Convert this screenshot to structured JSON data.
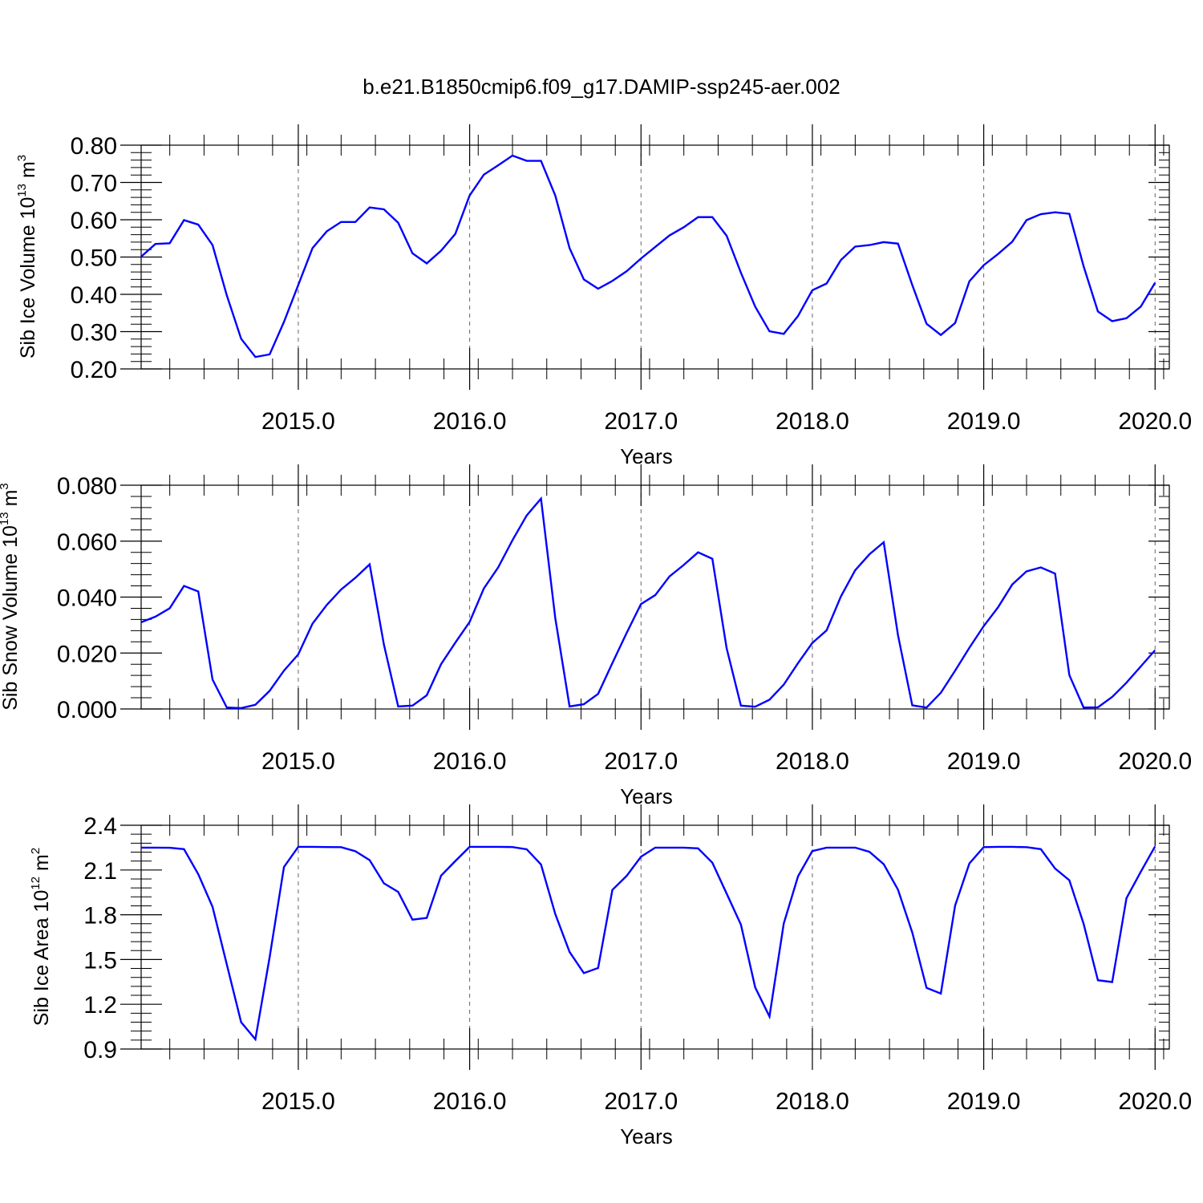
{
  "title": "b.e21.B1850cmip6.f09_g17.DAMIP-ssp245-aer.002",
  "colors": {
    "line": "#0000ff",
    "axis": "#000000",
    "grid": "#666666"
  },
  "chart_data": [
    {
      "type": "line",
      "ylabel": {
        "main": "Sib Ice Volume 10",
        "sup": "13",
        "unit": " m",
        "unit_sup": "3"
      },
      "xlabel": "Years",
      "xlim": [
        2014.083,
        2020.083
      ],
      "ylim": [
        0.2,
        0.8
      ],
      "y_ticks": [
        "0.20",
        "0.30",
        "0.40",
        "0.50",
        "0.60",
        "0.70",
        "0.80"
      ],
      "x_ticks": [
        "2015.0",
        "2016.0",
        "2017.0",
        "2018.0",
        "2019.0",
        "2020.0"
      ],
      "grid": "vertical-dashed-at-years",
      "x_start": 2014.083,
      "x_step": 0.0833333,
      "values": [
        0.501,
        0.535,
        0.537,
        0.599,
        0.587,
        0.532,
        0.397,
        0.281,
        0.232,
        0.239,
        0.326,
        0.425,
        0.524,
        0.569,
        0.594,
        0.594,
        0.633,
        0.628,
        0.592,
        0.51,
        0.483,
        0.517,
        0.562,
        0.665,
        0.721,
        0.746,
        0.772,
        0.758,
        0.758,
        0.665,
        0.524,
        0.44,
        0.415,
        0.436,
        0.462,
        0.496,
        0.527,
        0.558,
        0.58,
        0.607,
        0.607,
        0.557,
        0.458,
        0.367,
        0.301,
        0.294,
        0.342,
        0.411,
        0.429,
        0.492,
        0.528,
        0.532,
        0.54,
        0.536,
        0.425,
        0.321,
        0.291,
        0.323,
        0.435,
        0.478,
        0.508,
        0.541,
        0.599,
        0.615,
        0.62,
        0.616,
        0.475,
        0.354,
        0.328,
        0.336,
        0.367,
        0.431
      ]
    },
    {
      "type": "line",
      "ylabel": {
        "main": "Sib Snow Volume 10",
        "sup": "13",
        "unit": " m",
        "unit_sup": "3"
      },
      "xlabel": "Years",
      "xlim": [
        2014.083,
        2020.083
      ],
      "ylim": [
        0.0,
        0.08
      ],
      "y_ticks": [
        "0.000",
        "0.020",
        "0.040",
        "0.060",
        "0.080"
      ],
      "x_ticks": [
        "2015.0",
        "2016.0",
        "2017.0",
        "2018.0",
        "2019.0",
        "2020.0"
      ],
      "grid": "vertical-dashed-at-years",
      "x_start": 2014.083,
      "x_step": 0.0833333,
      "values": [
        0.031,
        0.033,
        0.036,
        0.044,
        0.042,
        0.0105,
        0.0005,
        0.0003,
        0.0015,
        0.0065,
        0.0137,
        0.0195,
        0.0305,
        0.0372,
        0.0427,
        0.0469,
        0.0517,
        0.023,
        0.0009,
        0.0012,
        0.0049,
        0.016,
        0.0237,
        0.0311,
        0.0431,
        0.0506,
        0.0603,
        0.0692,
        0.0752,
        0.0325,
        0.0009,
        0.0017,
        0.0054,
        0.0164,
        0.0272,
        0.0375,
        0.0407,
        0.0474,
        0.0515,
        0.056,
        0.0537,
        0.0217,
        0.0012,
        0.0008,
        0.0033,
        0.0087,
        0.0164,
        0.0236,
        0.0281,
        0.0402,
        0.0496,
        0.0553,
        0.0596,
        0.0264,
        0.0013,
        0.0005,
        0.0058,
        0.0137,
        0.0219,
        0.0296,
        0.0363,
        0.0445,
        0.0492,
        0.0506,
        0.0484,
        0.0121,
        0.0005,
        0.0006,
        0.0043,
        0.0094,
        0.0152,
        0.021
      ]
    },
    {
      "type": "line",
      "ylabel": {
        "main": "Sib Ice Area 10",
        "sup": "12",
        "unit": " m",
        "unit_sup": "2"
      },
      "xlabel": "Years",
      "xlim": [
        2014.083,
        2020.083
      ],
      "ylim": [
        0.9,
        2.4
      ],
      "y_ticks": [
        "0.9",
        "1.2",
        "1.5",
        "1.8",
        "2.1",
        "2.4"
      ],
      "x_ticks": [
        "2015.0",
        "2016.0",
        "2017.0",
        "2018.0",
        "2019.0",
        "2020.0"
      ],
      "grid": "vertical-dashed-at-years",
      "x_start": 2014.083,
      "x_step": 0.0833333,
      "values": [
        2.25,
        2.25,
        2.249,
        2.24,
        2.072,
        1.853,
        1.466,
        1.08,
        0.965,
        1.517,
        2.12,
        2.255,
        2.255,
        2.254,
        2.253,
        2.226,
        2.166,
        2.011,
        1.953,
        1.767,
        1.779,
        2.062,
        2.16,
        2.255,
        2.255,
        2.255,
        2.254,
        2.239,
        2.137,
        1.805,
        1.551,
        1.409,
        1.443,
        1.967,
        2.061,
        2.189,
        2.25,
        2.25,
        2.25,
        2.245,
        2.149,
        1.942,
        1.734,
        1.313,
        1.118,
        1.741,
        2.058,
        2.227,
        2.25,
        2.25,
        2.25,
        2.222,
        2.139,
        1.968,
        1.681,
        1.31,
        1.272,
        1.862,
        2.144,
        2.253,
        2.255,
        2.255,
        2.253,
        2.24,
        2.11,
        2.031,
        1.739,
        1.361,
        1.349,
        1.911,
        2.088,
        2.258
      ]
    }
  ]
}
